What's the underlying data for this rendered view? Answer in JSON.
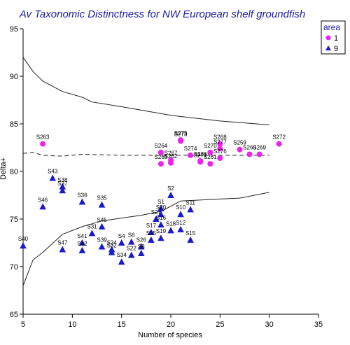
{
  "chart_data": {
    "type": "scatter",
    "title": "Av Taxonomic Distinctness for NW European shelf groundfish",
    "xlabel": "Number of species",
    "ylabel": "Delta+",
    "xlim": [
      5,
      35
    ],
    "ylim": [
      65,
      95
    ],
    "xticks": [
      5,
      10,
      15,
      20,
      25,
      30,
      35
    ],
    "yticks": [
      65,
      70,
      75,
      80,
      85,
      90,
      95
    ],
    "legend": {
      "title": "area",
      "position": "top-right",
      "entries": [
        {
          "label": "1",
          "marker": "circle",
          "color": "#ee22ee"
        },
        {
          "label": "9",
          "marker": "triangle",
          "color": "#1a1acc"
        }
      ]
    },
    "funnel_lines": [
      {
        "style": "solid",
        "points": [
          [
            5,
            92
          ],
          [
            6,
            90.5
          ],
          [
            7,
            89.5
          ],
          [
            9,
            88.4
          ],
          [
            11,
            87.8
          ],
          [
            12,
            87.3
          ],
          [
            15,
            86.8
          ],
          [
            20,
            85.9
          ],
          [
            25,
            85.3
          ],
          [
            30,
            84.9
          ]
        ]
      },
      {
        "style": "dashed",
        "points": [
          [
            5,
            81.9
          ],
          [
            6,
            82
          ],
          [
            7,
            81.7
          ],
          [
            9,
            81.6
          ],
          [
            11,
            81.8
          ],
          [
            15,
            81.7
          ],
          [
            20,
            81.7
          ],
          [
            25,
            81.7
          ],
          [
            30,
            81.7
          ]
        ]
      },
      {
        "style": "solid",
        "points": [
          [
            5,
            68
          ],
          [
            6,
            70.7
          ],
          [
            7,
            71.5
          ],
          [
            9,
            73.4
          ],
          [
            11,
            74.2
          ],
          [
            13,
            74.8
          ],
          [
            15,
            75.1
          ],
          [
            17,
            75.4
          ],
          [
            19,
            75.8
          ],
          [
            21,
            76.9
          ],
          [
            25,
            77.1
          ],
          [
            27,
            77.2
          ],
          [
            30,
            77.8
          ]
        ]
      }
    ],
    "series": [
      {
        "name": "1",
        "marker": "circle",
        "color": "#ee22ee",
        "points": [
          {
            "label": "S263",
            "x": 7,
            "y": 82.9
          },
          {
            "label": "S264",
            "x": 19,
            "y": 82
          },
          {
            "label": "S265",
            "x": 19,
            "y": 80.8
          },
          {
            "label": "S267",
            "x": 20,
            "y": 81.2
          },
          {
            "label": "S262",
            "x": 20,
            "y": 80.9
          },
          {
            "label": "S275",
            "x": 21,
            "y": 83.3
          },
          {
            "label": "S273",
            "x": 21,
            "y": 83.2
          },
          {
            "label": "S274",
            "x": 22,
            "y": 81.7
          },
          {
            "label": "S266",
            "x": 23,
            "y": 81.1
          },
          {
            "label": "S271",
            "x": 23,
            "y": 81
          },
          {
            "label": "S270",
            "x": 24,
            "y": 82
          },
          {
            "label": "S261",
            "x": 24,
            "y": 80.8
          },
          {
            "label": "S268",
            "x": 25,
            "y": 82.9
          },
          {
            "label": "S277",
            "x": 25,
            "y": 82.4
          },
          {
            "label": "S276",
            "x": 25,
            "y": 81.4
          },
          {
            "label": "S259",
            "x": 27,
            "y": 82.3
          },
          {
            "label": "S260",
            "x": 28,
            "y": 81.8
          },
          {
            "label": "S269",
            "x": 29,
            "y": 81.8
          },
          {
            "label": "S272",
            "x": 31,
            "y": 82.9
          }
        ]
      },
      {
        "name": "9",
        "marker": "triangle",
        "color": "#1a1acc",
        "points": [
          {
            "label": "S40",
            "x": 5,
            "y": 72.2
          },
          {
            "label": "S46",
            "x": 7,
            "y": 76.3
          },
          {
            "label": "S43",
            "x": 8,
            "y": 79.3
          },
          {
            "label": "S38",
            "x": 9,
            "y": 78.4
          },
          {
            "label": "S37",
            "x": 9,
            "y": 78
          },
          {
            "label": "S47",
            "x": 9,
            "y": 71.8
          },
          {
            "label": "S36",
            "x": 11,
            "y": 76.8
          },
          {
            "label": "S41",
            "x": 11,
            "y": 72.5
          },
          {
            "label": "S42",
            "x": 11,
            "y": 71.7
          },
          {
            "label": "S31",
            "x": 12,
            "y": 73.5
          },
          {
            "label": "S35",
            "x": 13,
            "y": 76.5
          },
          {
            "label": "S45",
            "x": 13,
            "y": 74.2
          },
          {
            "label": "S39",
            "x": 13,
            "y": 72.1
          },
          {
            "label": "S24",
            "x": 14,
            "y": 71.8
          },
          {
            "label": "S32",
            "x": 14,
            "y": 71.5
          },
          {
            "label": "S4",
            "x": 15,
            "y": 72.5
          },
          {
            "label": "S34",
            "x": 15,
            "y": 70.5
          },
          {
            "label": "S6",
            "x": 16,
            "y": 72.6
          },
          {
            "label": "S22",
            "x": 16,
            "y": 71.2
          },
          {
            "label": "S26",
            "x": 17,
            "y": 72.1
          },
          {
            "label": "S8",
            "x": 17,
            "y": 71.4
          },
          {
            "label": "S17",
            "x": 18,
            "y": 73.6
          },
          {
            "label": "S25",
            "x": 18,
            "y": 72.8
          },
          {
            "label": "S27",
            "x": 18.5,
            "y": 75
          },
          {
            "label": "S1",
            "x": 19,
            "y": 76.1
          },
          {
            "label": "S20",
            "x": 19,
            "y": 75.5
          },
          {
            "label": "S16",
            "x": 19,
            "y": 74.4
          },
          {
            "label": "S19",
            "x": 19,
            "y": 73
          },
          {
            "label": "S2",
            "x": 20,
            "y": 77.5
          },
          {
            "label": "S18",
            "x": 20,
            "y": 73.8
          },
          {
            "label": "S10",
            "x": 21,
            "y": 75.5
          },
          {
            "label": "S12",
            "x": 21,
            "y": 73.9
          },
          {
            "label": "S11",
            "x": 22,
            "y": 76
          },
          {
            "label": "S15",
            "x": 22,
            "y": 72.8
          }
        ]
      }
    ]
  }
}
